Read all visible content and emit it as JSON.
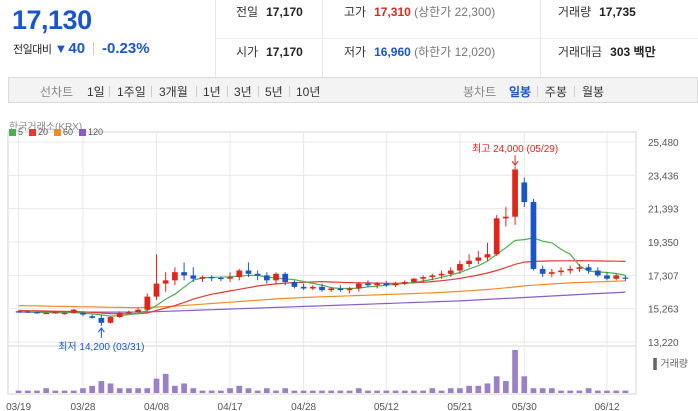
{
  "quote": {
    "price": "17,130",
    "change_label": "전일대비",
    "change_arrow": "▼",
    "change_amount": "40",
    "change_rate": "-0.23%",
    "prev_close_label": "전일",
    "prev_close": "17,170",
    "high_label": "고가",
    "high": "17,310",
    "upper_limit": "(상한가 22,300)",
    "volume_label": "거래량",
    "volume": "17,735",
    "open_label": "시가",
    "open": "17,170",
    "low_label": "저가",
    "low": "16,960",
    "lower_limit": "(하한가 12,020)",
    "amount_label": "거래대금",
    "amount": "303 백만"
  },
  "toolbar": {
    "line_chart_label": "선차트",
    "periods": [
      "1일",
      "1주일",
      "3개월",
      "1년",
      "3년",
      "5년",
      "10년"
    ],
    "candle_chart_label": "봉차트",
    "candle_periods": [
      "일봉",
      "주봉",
      "월봉"
    ],
    "active_candle": "일봉"
  },
  "chart": {
    "source": "한국거래소(KRX)",
    "volume_label": "거래량",
    "legend": [
      {
        "name": "5",
        "color": "#4caf50"
      },
      {
        "name": "20",
        "color": "#e53935"
      },
      {
        "name": "60",
        "color": "#f28c28"
      },
      {
        "name": "120",
        "color": "#8a5cc8"
      }
    ],
    "colors": {
      "up": "#e0261b",
      "down": "#1a55c9",
      "volume": "#9b80c6",
      "grid": "#e8e8e8"
    },
    "max_annotation": "최고 24,000 (05/29)",
    "min_annotation": "최저 14,200 (03/31)"
  },
  "chart_data": {
    "type": "candlestick",
    "y_ticks": [
      "25,480",
      "23,436",
      "21,393",
      "19,350",
      "17,307",
      "15,263",
      "13,220"
    ],
    "y_tick_values": [
      25480,
      23436,
      21393,
      19350,
      17307,
      15263,
      13220
    ],
    "x_ticks": [
      "03/19",
      "03/28",
      "04/08",
      "04/17",
      "04/28",
      "05/12",
      "05/21",
      "05/30",
      "06/12"
    ],
    "x_tick_index": [
      0,
      7,
      15,
      23,
      31,
      40,
      48,
      55,
      64
    ],
    "ylim": [
      13220,
      25480
    ],
    "candles": [
      [
        15100,
        15150,
        15050,
        15050
      ],
      [
        15100,
        15150,
        15000,
        15050
      ],
      [
        15050,
        15100,
        14950,
        15000
      ],
      [
        15000,
        15050,
        14950,
        15000
      ],
      [
        15000,
        15100,
        14950,
        15050
      ],
      [
        14950,
        15050,
        14900,
        15000
      ],
      [
        15000,
        15250,
        14950,
        15200
      ],
      [
        15000,
        15050,
        14800,
        14900
      ],
      [
        14800,
        14900,
        14650,
        14700
      ],
      [
        14700,
        14850,
        14200,
        14400
      ],
      [
        14400,
        14800,
        14350,
        14750
      ],
      [
        14750,
        15100,
        14700,
        15000
      ],
      [
        15000,
        15150,
        14950,
        15050
      ],
      [
        15050,
        15300,
        15000,
        15200
      ],
      [
        15200,
        16200,
        15150,
        16000
      ],
      [
        16000,
        18600,
        15800,
        16800
      ],
      [
        16800,
        17500,
        16300,
        17000
      ],
      [
        17000,
        17800,
        16700,
        17500
      ],
      [
        17500,
        18100,
        17000,
        17300
      ],
      [
        17300,
        17800,
        16900,
        17100
      ],
      [
        17100,
        17300,
        16900,
        17200
      ],
      [
        17200,
        17300,
        16950,
        17150
      ],
      [
        17150,
        17250,
        16950,
        17100
      ],
      [
        17100,
        17500,
        16900,
        17200
      ],
      [
        17200,
        17700,
        17000,
        17600
      ],
      [
        17600,
        18100,
        17200,
        17400
      ],
      [
        17400,
        17600,
        17000,
        17300
      ],
      [
        17300,
        17500,
        16800,
        17000
      ],
      [
        17000,
        17500,
        16800,
        17400
      ],
      [
        17400,
        17500,
        16700,
        16900
      ],
      [
        16900,
        17000,
        16500,
        16600
      ],
      [
        16600,
        16800,
        16400,
        16500
      ],
      [
        16500,
        16700,
        16400,
        16600
      ],
      [
        16600,
        16800,
        16300,
        16400
      ],
      [
        16400,
        16600,
        16300,
        16500
      ],
      [
        16500,
        16700,
        16300,
        16400
      ],
      [
        16400,
        16600,
        16200,
        16500
      ],
      [
        16500,
        16900,
        16300,
        16800
      ],
      [
        16800,
        17000,
        16600,
        16700
      ],
      [
        16700,
        16900,
        16500,
        16800
      ],
      [
        16800,
        16950,
        16600,
        16700
      ],
      [
        16700,
        16900,
        16600,
        16800
      ],
      [
        16800,
        17000,
        16700,
        16900
      ],
      [
        16900,
        17150,
        16800,
        17100
      ],
      [
        17100,
        17300,
        16900,
        17200
      ],
      [
        17200,
        17400,
        17000,
        17300
      ],
      [
        17300,
        17600,
        17100,
        17400
      ],
      [
        17400,
        17800,
        17200,
        17600
      ],
      [
        17600,
        18200,
        17400,
        18000
      ],
      [
        18000,
        18600,
        17800,
        18200
      ],
      [
        18200,
        18800,
        18000,
        18400
      ],
      [
        18400,
        19300,
        18200,
        18600
      ],
      [
        18600,
        21000,
        18500,
        20800
      ],
      [
        20800,
        21500,
        20300,
        20900
      ],
      [
        20900,
        24000,
        20400,
        23800
      ],
      [
        23000,
        23300,
        21500,
        21800
      ],
      [
        21800,
        22000,
        17600,
        17700
      ],
      [
        17700,
        17900,
        17200,
        17400
      ],
      [
        17400,
        17700,
        17200,
        17500
      ],
      [
        17500,
        17800,
        17300,
        17600
      ],
      [
        17600,
        17900,
        17400,
        17700
      ],
      [
        17700,
        18000,
        17500,
        17800
      ],
      [
        17800,
        18000,
        17400,
        17600
      ],
      [
        17600,
        17800,
        17200,
        17300
      ],
      [
        17300,
        17500,
        17000,
        17100
      ],
      [
        17100,
        17400,
        17000,
        17300
      ],
      [
        17170,
        17310,
        16960,
        17130
      ]
    ],
    "volumes": [
      1,
      1,
      1,
      2,
      1,
      1,
      1,
      2,
      3,
      5,
      4,
      2,
      2,
      2,
      2,
      6,
      8,
      3,
      4,
      2,
      1,
      1,
      1,
      2,
      3,
      2,
      1,
      2,
      1,
      2,
      1,
      1,
      1,
      1,
      1,
      1,
      1,
      2,
      1,
      1,
      1,
      1,
      1,
      1,
      1,
      2,
      1,
      2,
      2,
      3,
      3,
      4,
      7,
      5,
      18,
      7,
      2,
      2,
      2,
      1,
      1,
      1,
      2,
      1,
      1,
      1,
      1
    ],
    "ma5": [
      15100,
      15060,
      15040,
      15020,
      15010,
      15020,
      15020,
      14990,
      14940,
      14880,
      14810,
      14830,
      14900,
      14960,
      15150,
      15460,
      15850,
      16150,
      16580,
      17010,
      17150,
      17180,
      17190,
      17220,
      17250,
      17310,
      17300,
      17210,
      17140,
      17090,
      17040,
      16930,
      16810,
      16700,
      16550,
      16500,
      16500,
      16520,
      16600,
      16640,
      16700,
      16760,
      16810,
      16870,
      16960,
      17060,
      17190,
      17320,
      17480,
      17700,
      17900,
      18180,
      18600,
      19000,
      19450,
      19500,
      19600,
      19400,
      19300,
      18900,
      18600,
      17900,
      17560,
      17520,
      17480,
      17420,
      17300
    ],
    "ma20": [
      15150,
      15140,
      15130,
      15120,
      15110,
      15100,
      15090,
      15070,
      15040,
      15000,
      14960,
      14950,
      14950,
      14960,
      15000,
      15150,
      15300,
      15450,
      15650,
      15850,
      16000,
      16150,
      16250,
      16350,
      16450,
      16550,
      16650,
      16720,
      16780,
      16830,
      16860,
      16880,
      16900,
      16920,
      16900,
      16880,
      16860,
      16850,
      16840,
      16830,
      16820,
      16820,
      16830,
      16850,
      16880,
      16920,
      16980,
      17040,
      17120,
      17220,
      17330,
      17450,
      17600,
      17780,
      17980,
      18120,
      18160,
      18180,
      18190,
      18200,
      18200,
      18210,
      18200,
      18190,
      18180,
      18170,
      18160
    ],
    "ma60": [
      15450,
      15440,
      15430,
      15420,
      15410,
      15400,
      15390,
      15380,
      15370,
      15360,
      15350,
      15340,
      15330,
      15330,
      15340,
      15360,
      15390,
      15420,
      15460,
      15500,
      15540,
      15580,
      15620,
      15660,
      15700,
      15740,
      15780,
      15820,
      15860,
      15890,
      15920,
      15950,
      15970,
      15990,
      16010,
      16030,
      16050,
      16070,
      16090,
      16110,
      16130,
      16150,
      16170,
      16190,
      16210,
      16230,
      16260,
      16290,
      16320,
      16360,
      16400,
      16440,
      16490,
      16540,
      16600,
      16660,
      16700,
      16740,
      16780,
      16810,
      16840,
      16870,
      16890,
      16910,
      16930,
      16950,
      16970
    ],
    "ma120": [
      15050,
      15050,
      15050,
      15050,
      15050,
      15050,
      15050,
      15050,
      15050,
      15050,
      15050,
      15050,
      15050,
      15060,
      15070,
      15080,
      15100,
      15120,
      15140,
      15160,
      15180,
      15200,
      15220,
      15240,
      15260,
      15280,
      15300,
      15320,
      15340,
      15360,
      15380,
      15400,
      15420,
      15440,
      15460,
      15480,
      15500,
      15520,
      15540,
      15560,
      15580,
      15600,
      15620,
      15640,
      15660,
      15680,
      15700,
      15720,
      15740,
      15770,
      15800,
      15830,
      15860,
      15890,
      15920,
      15950,
      15980,
      16010,
      16040,
      16070,
      16100,
      16130,
      16160,
      16190,
      16220,
      16250,
      16280
    ]
  }
}
